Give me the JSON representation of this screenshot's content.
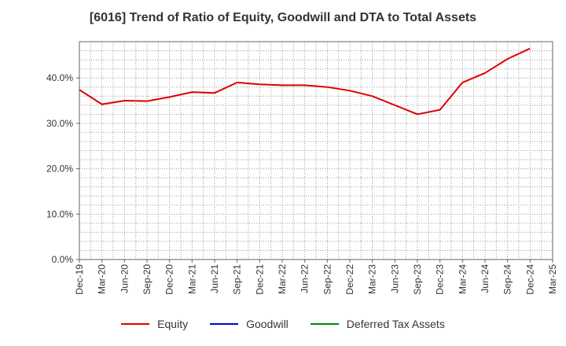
{
  "chart_data": {
    "type": "line",
    "title": "[6016]  Trend of Ratio of Equity, Goodwill and DTA to Total Assets",
    "xlabel": "",
    "ylabel": "",
    "ylim": [
      0,
      48
    ],
    "y_ticks": [
      0,
      10,
      20,
      30,
      40
    ],
    "y_tick_labels": [
      "0.0%",
      "10.0%",
      "20.0%",
      "30.0%",
      "40.0%"
    ],
    "x_tick_labels": [
      "Dec-19",
      "Mar-20",
      "Jun-20",
      "Sep-20",
      "Dec-20",
      "Mar-21",
      "Jun-21",
      "Sep-21",
      "Dec-21",
      "Mar-22",
      "Jun-22",
      "Sep-22",
      "Dec-22",
      "Mar-23",
      "Jun-23",
      "Sep-23",
      "Dec-23",
      "Mar-24",
      "Jun-24",
      "Sep-24",
      "Dec-24",
      "Mar-25"
    ],
    "grid": true,
    "legend_position": "bottom",
    "series": [
      {
        "name": "Equity",
        "color": "#dd0000",
        "values": [
          37.4,
          34.2,
          35.0,
          34.9,
          35.8,
          36.9,
          36.7,
          39.0,
          38.6,
          38.4,
          38.4,
          38.0,
          37.2,
          36.0,
          34.0,
          32.0,
          33.0,
          39.0,
          41.1,
          44.2,
          46.5,
          null
        ]
      },
      {
        "name": "Goodwill",
        "color": "#0000dd",
        "values": []
      },
      {
        "name": "Deferred Tax Assets",
        "color": "#008800",
        "values": []
      }
    ]
  }
}
